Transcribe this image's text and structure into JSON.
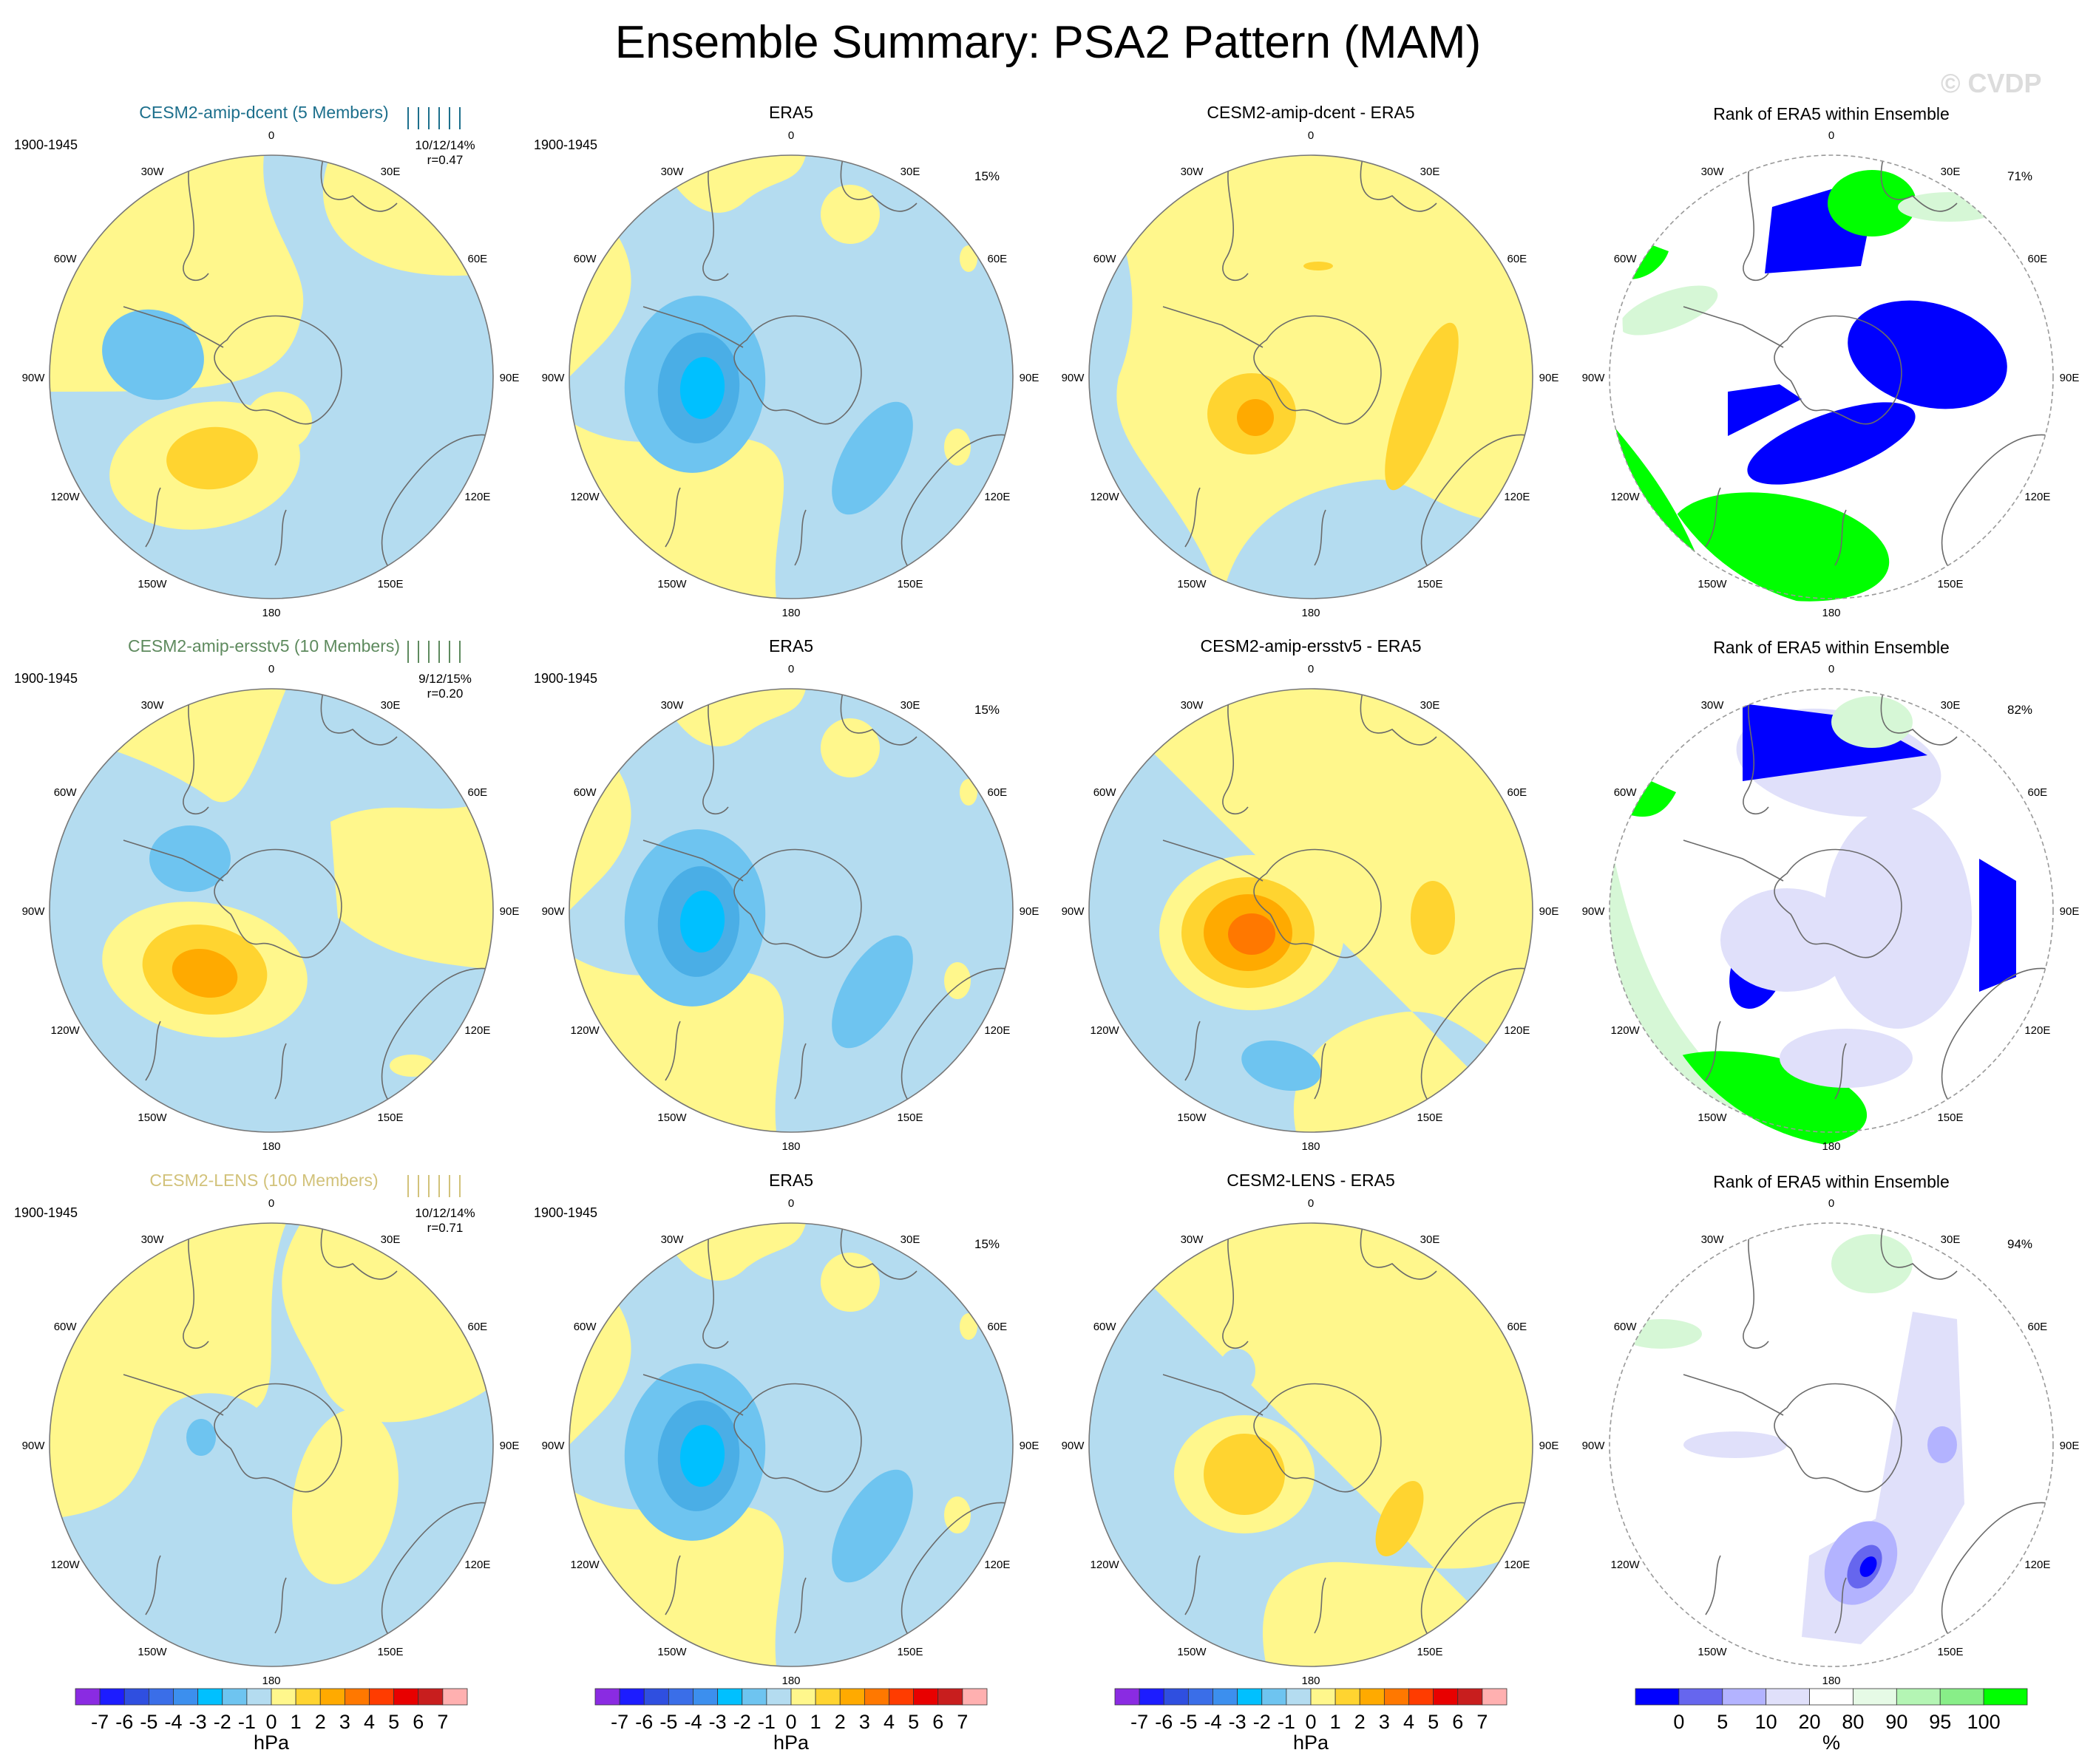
{
  "title": "Ensemble Summary: PSA2 Pattern (MAM)",
  "watermark": "© CVDP",
  "colors": {
    "contour": [
      "#8a2be2",
      "#1c1cff",
      "#2f4fe0",
      "#3a6ee8",
      "#3c8fee",
      "#00c0ff",
      "#6ec4f0",
      "#b4dcf0",
      "#fff78c",
      "#ffd430",
      "#ffaa00",
      "#ff7800",
      "#ff3c00",
      "#e80000",
      "#c81e1e",
      "#ffb0b0"
    ],
    "rank": [
      "#0000ff",
      "#6666ee",
      "#b3b3ff",
      "#e0e0fa",
      "#ffffff",
      "#e6fae6",
      "#b4f5b4",
      "#88ee88",
      "#00ff00"
    ],
    "blue": "#b4dcf0",
    "yellow": "#fff78c",
    "orange": "#ffd430",
    "dorange": "#ffaa00",
    "lblue": "#6ec4f0",
    "cyan": "#00c0ff",
    "rankblue": "#0000ff",
    "rankgreen": "#00ff00",
    "ranklav": "#e0e0fa",
    "ranklgreen": "#d6f7d6"
  },
  "rows": [
    {
      "model_title": "CESM2-amip-dcent (5 Members)",
      "title_color": "#1c6f8c",
      "period": "1900-1945",
      "stats": "10/12/14%",
      "corr": "r=0.47",
      "era5_pct": "15%",
      "diff_title": "CESM2-amip-dcent - ERA5",
      "rank_title": "Rank of ERA5 within Ensemble",
      "rank_pct": "71%"
    },
    {
      "model_title": "CESM2-amip-ersstv5 (10 Members)",
      "title_color": "#5e8a5e",
      "period": "1900-1945",
      "stats": "9/12/15%",
      "corr": "r=0.20",
      "era5_pct": "15%",
      "diff_title": "CESM2-amip-ersstv5 - ERA5",
      "rank_title": "Rank of ERA5 within Ensemble",
      "rank_pct": "82%"
    },
    {
      "model_title": "CESM2-LENS (100 Members)",
      "title_color": "#d2c27a",
      "period": "1900-1945",
      "stats": "10/12/14%",
      "corr": "r=0.71",
      "era5_pct": "15%",
      "diff_title": "CESM2-LENS - ERA5",
      "rank_title": "Rank of ERA5 within Ensemble",
      "rank_pct": "94%"
    }
  ],
  "obs_title": "ERA5",
  "obs_period": "1900-1945",
  "longitude_labels": [
    "0",
    "30E",
    "60E",
    "90E",
    "120E",
    "150E",
    "180",
    "150W",
    "120W",
    "90W",
    "60W",
    "30W"
  ],
  "colorbar": {
    "ticks": [
      "-7",
      "-6",
      "-5",
      "-4",
      "-3",
      "-2",
      "-1",
      "0",
      "1",
      "2",
      "3",
      "4",
      "5",
      "6",
      "7"
    ],
    "units": "hPa"
  },
  "rank_colorbar": {
    "ticks": [
      "0",
      "5",
      "10",
      "20",
      "80",
      "90",
      "95",
      "100"
    ],
    "units": "%"
  },
  "chart_data": {
    "type": "heatmap",
    "title": "Ensemble Summary: PSA2 Pattern (MAM)",
    "projection": "south polar stereographic",
    "panels": [
      {
        "row": 1,
        "col": 1,
        "title": "CESM2-amip-dcent (5 Members)",
        "features": [
          {
            "lon": 225,
            "value": 2
          },
          {
            "lon": 290,
            "value": -2
          }
        ]
      },
      {
        "row": 1,
        "col": 2,
        "title": "ERA5",
        "features": [
          {
            "lon": 280,
            "value": -4
          },
          {
            "lon": 155,
            "value": -2
          }
        ]
      },
      {
        "row": 1,
        "col": 3,
        "title": "CESM2-amip-dcent - ERA5",
        "features": [
          {
            "lon": 255,
            "value": 3
          },
          {
            "lon": 110,
            "value": 2
          }
        ]
      },
      {
        "row": 1,
        "col": 4,
        "title": "Rank of ERA5 within Ensemble",
        "pct": "71%"
      },
      {
        "row": 2,
        "col": 1,
        "title": "CESM2-amip-ersstv5 (10 Members)",
        "features": [
          {
            "lon": 240,
            "value": 3
          },
          {
            "lon": 300,
            "value": -2
          }
        ]
      },
      {
        "row": 2,
        "col": 2,
        "title": "ERA5",
        "features": [
          {
            "lon": 280,
            "value": -4
          },
          {
            "lon": 155,
            "value": -2
          }
        ]
      },
      {
        "row": 2,
        "col": 3,
        "title": "CESM2-amip-ersstv5 - ERA5",
        "features": [
          {
            "lon": 255,
            "value": 4
          },
          {
            "lon": 195,
            "value": -2
          }
        ]
      },
      {
        "row": 2,
        "col": 4,
        "title": "Rank of ERA5 within Ensemble",
        "pct": "82%"
      },
      {
        "row": 3,
        "col": 1,
        "title": "CESM2-LENS (100 Members)",
        "features": [
          {
            "lon": 280,
            "value": -2
          }
        ]
      },
      {
        "row": 3,
        "col": 2,
        "title": "ERA5",
        "features": [
          {
            "lon": 280,
            "value": -4
          },
          {
            "lon": 155,
            "value": -2
          }
        ]
      },
      {
        "row": 3,
        "col": 3,
        "title": "CESM2-LENS - ERA5",
        "features": [
          {
            "lon": 245,
            "value": 2
          },
          {
            "lon": 140,
            "value": 2
          }
        ]
      },
      {
        "row": 3,
        "col": 4,
        "title": "Rank of ERA5 within Ensemble",
        "pct": "94%"
      }
    ],
    "levels": [
      -7,
      -6,
      -5,
      -4,
      -3,
      -2,
      -1,
      0,
      1,
      2,
      3,
      4,
      5,
      6,
      7
    ],
    "units": "hPa",
    "rank_levels": [
      0,
      5,
      10,
      20,
      80,
      90,
      95,
      100
    ],
    "rank_units": "%"
  }
}
